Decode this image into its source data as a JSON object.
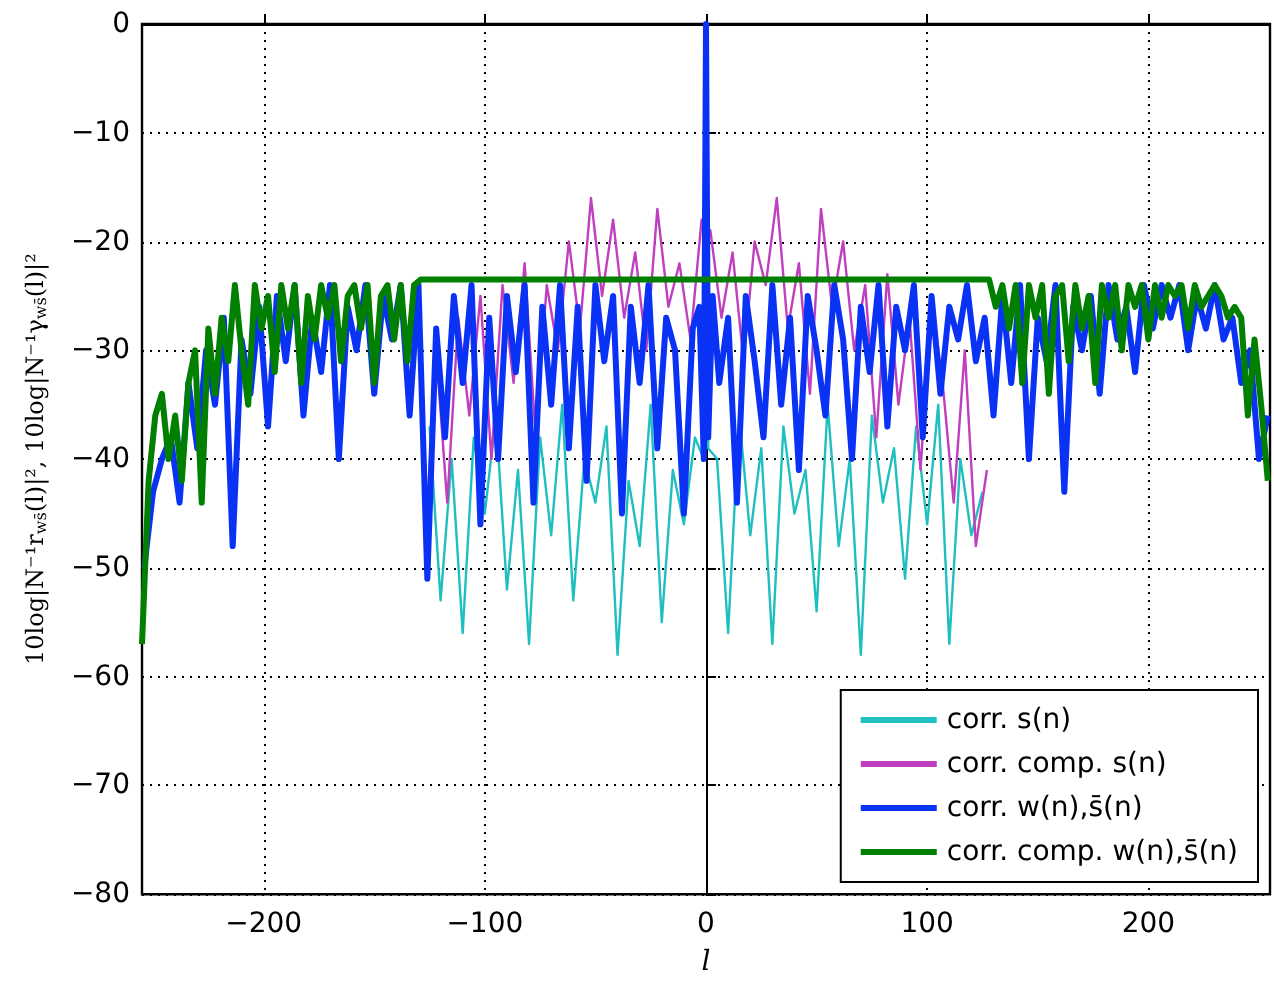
{
  "chart_data": {
    "type": "line",
    "xlabel": "l",
    "ylabel": "10log|N⁻¹r$_{ws̄}$(l)|², 10log|N⁻¹γ$_{ws̄}$(l)|²",
    "xlim": [
      -255,
      255
    ],
    "xticks": [
      -200,
      -100,
      0,
      100,
      200
    ],
    "ylim": [
      -80,
      0
    ],
    "yticks": [
      -80,
      -70,
      -60,
      -50,
      -40,
      -30,
      -20,
      -10,
      0
    ],
    "grid": true,
    "legend": "bottom right",
    "marker": "none",
    "line_style": "solid",
    "series": [
      {
        "name": "corr. s(n)",
        "color": "#1fbfbf",
        "x": [
          -125,
          -120,
          -115,
          -110,
          -105,
          -100,
          -95,
          -90,
          -85,
          -80,
          -75,
          -70,
          -65,
          -60,
          -55,
          -50,
          -45,
          -40,
          -35,
          -30,
          -25,
          -20,
          -15,
          -10,
          -5,
          -1,
          0,
          1,
          5,
          10,
          15,
          20,
          25,
          30,
          35,
          40,
          45,
          50,
          55,
          60,
          65,
          70,
          75,
          80,
          85,
          90,
          95,
          100,
          105,
          110,
          115,
          120,
          125
        ],
        "values": [
          -37,
          -53,
          -40,
          -56,
          -38,
          -45,
          -36,
          -52,
          -41,
          -57,
          -38,
          -47,
          -35,
          -53,
          -40,
          -44,
          -37,
          -58,
          -42,
          -48,
          -35,
          -55,
          -41,
          -46,
          -38,
          -40,
          0,
          -39,
          -40,
          -56,
          -36,
          -47,
          -39,
          -57,
          -37,
          -45,
          -41,
          -54,
          -35,
          -48,
          -40,
          -58,
          -36,
          -44,
          -39,
          -51,
          -37,
          -46,
          -35,
          -57,
          -40,
          -47,
          -43
        ]
      },
      {
        "name": "corr. comp. s(n)",
        "color": "#bf3fbf",
        "x": [
          -127,
          -122,
          -117,
          -112,
          -107,
          -102,
          -97,
          -92,
          -87,
          -82,
          -77,
          -72,
          -67,
          -62,
          -57,
          -52,
          -47,
          -42,
          -37,
          -32,
          -27,
          -22,
          -17,
          -12,
          -7,
          -2,
          2,
          7,
          12,
          17,
          22,
          27,
          32,
          37,
          42,
          47,
          52,
          57,
          62,
          67,
          72,
          77,
          82,
          87,
          92,
          97,
          102,
          107,
          112,
          117,
          122,
          127
        ],
        "values": [
          -48,
          -30,
          -44,
          -27,
          -36,
          -25,
          -40,
          -24,
          -33,
          -22,
          -38,
          -24,
          -30,
          -20,
          -28,
          -16,
          -25,
          -18,
          -27,
          -21,
          -30,
          -17,
          -26,
          -22,
          -29,
          -18,
          -19,
          -27,
          -21,
          -31,
          -20,
          -24,
          -16,
          -28,
          -22,
          -34,
          -17,
          -26,
          -20,
          -30,
          -24,
          -38,
          -23,
          -35,
          -27,
          -41,
          -25,
          -33,
          -44,
          -30,
          -48,
          -41
        ]
      },
      {
        "name": "corr. w(n),s̄(n)",
        "color": "#0a32f5",
        "x": [
          -254,
          -250,
          -246,
          -242,
          -238,
          -234,
          -230,
          -226,
          -222,
          -218,
          -214,
          -210,
          -206,
          -202,
          -198,
          -194,
          -190,
          -186,
          -182,
          -178,
          -174,
          -170,
          -166,
          -162,
          -158,
          -154,
          -150,
          -146,
          -142,
          -138,
          -134,
          -130,
          -126,
          -122,
          -118,
          -114,
          -110,
          -106,
          -102,
          -98,
          -94,
          -90,
          -86,
          -82,
          -78,
          -74,
          -70,
          -66,
          -62,
          -58,
          -54,
          -50,
          -46,
          -42,
          -38,
          -34,
          -30,
          -26,
          -22,
          -18,
          -14,
          -10,
          -6,
          -3,
          -1,
          0,
          1,
          3,
          6,
          10,
          14,
          18,
          22,
          26,
          30,
          34,
          38,
          42,
          46,
          50,
          54,
          58,
          62,
          66,
          70,
          74,
          78,
          82,
          86,
          90,
          94,
          98,
          102,
          106,
          110,
          114,
          118,
          122,
          126,
          130,
          134,
          138,
          142,
          146,
          150,
          154,
          158,
          162,
          166,
          170,
          174,
          178,
          182,
          186,
          190,
          194,
          198,
          202,
          206,
          210,
          214,
          218,
          222,
          226,
          230,
          234,
          238,
          242,
          246,
          250,
          254
        ],
        "values": [
          -50,
          -43,
          -40,
          -38,
          -44,
          -33,
          -39,
          -30,
          -35,
          -27,
          -48,
          -29,
          -34,
          -26,
          -37,
          -25,
          -31,
          -24,
          -36,
          -27,
          -32,
          -24,
          -40,
          -26,
          -30,
          -24,
          -34,
          -25,
          -29,
          -24,
          -36,
          -24,
          -51,
          -28,
          -38,
          -25,
          -33,
          -24,
          -46,
          -27,
          -40,
          -25,
          -32,
          -24,
          -44,
          -26,
          -35,
          -24,
          -39,
          -26,
          -42,
          -24,
          -31,
          -25,
          -45,
          -26,
          -33,
          -24,
          -39,
          -27,
          -30,
          -45,
          -28,
          -26,
          -40,
          0,
          -38,
          -25,
          -33,
          -27,
          -44,
          -25,
          -31,
          -38,
          -24,
          -35,
          -27,
          -41,
          -25,
          -30,
          -36,
          -24,
          -29,
          -40,
          -26,
          -32,
          -24,
          -37,
          -26,
          -30,
          -24,
          -38,
          -25,
          -34,
          -26,
          -29,
          -24,
          -31,
          -27,
          -36,
          -25,
          -33,
          -24,
          -40,
          -27,
          -31,
          -24,
          -43,
          -26,
          -30,
          -25,
          -34,
          -24,
          -29,
          -26,
          -32,
          -24,
          -28,
          -24,
          -27,
          -24,
          -30,
          -25,
          -28,
          -24,
          -29,
          -27,
          -33,
          -30,
          -40,
          -36
        ]
      },
      {
        "name": "corr. comp. w(n),s̄(n)",
        "color": "#007f00",
        "x": [
          -255,
          -252,
          -249,
          -246,
          -243,
          -240,
          -237,
          -234,
          -231,
          -228,
          -225,
          -222,
          -219,
          -216,
          -213,
          -210,
          -207,
          -204,
          -201,
          -198,
          -195,
          -192,
          -189,
          -186,
          -183,
          -180,
          -177,
          -174,
          -171,
          -168,
          -165,
          -162,
          -159,
          -156,
          -153,
          -150,
          -147,
          -144,
          -141,
          -138,
          -135,
          -132,
          -129,
          128,
          131,
          134,
          137,
          140,
          143,
          146,
          149,
          152,
          155,
          158,
          161,
          164,
          167,
          170,
          173,
          176,
          179,
          182,
          185,
          188,
          191,
          194,
          197,
          200,
          203,
          206,
          209,
          212,
          215,
          218,
          221,
          224,
          227,
          230,
          233,
          236,
          239,
          242,
          245,
          248,
          251,
          254
        ],
        "values": [
          -57,
          -42,
          -36,
          -34,
          -40,
          -36,
          -42,
          -33,
          -30,
          -44,
          -28,
          -34,
          -27,
          -31,
          -24,
          -30,
          -35,
          -24,
          -28,
          -25,
          -32,
          -24,
          -28,
          -24,
          -33,
          -25,
          -29,
          -24,
          -27,
          -24,
          -31,
          -25,
          -24,
          -28,
          -24,
          -33,
          -25,
          -24,
          -29,
          -24,
          -31,
          -24,
          -23.5,
          -23.5,
          -26,
          -24,
          -28,
          -24,
          -33,
          -24,
          -27,
          -24,
          -34,
          -25,
          -24,
          -31,
          -24,
          -28,
          -25,
          -33,
          -24,
          -27,
          -24,
          -30,
          -24,
          -26,
          -24,
          -29,
          -24,
          -27,
          -24,
          -25,
          -24,
          -28,
          -24,
          -26,
          -25,
          -24,
          -25,
          -27,
          -26,
          -27,
          -36,
          -29,
          -35,
          -42
        ]
      }
    ]
  }
}
